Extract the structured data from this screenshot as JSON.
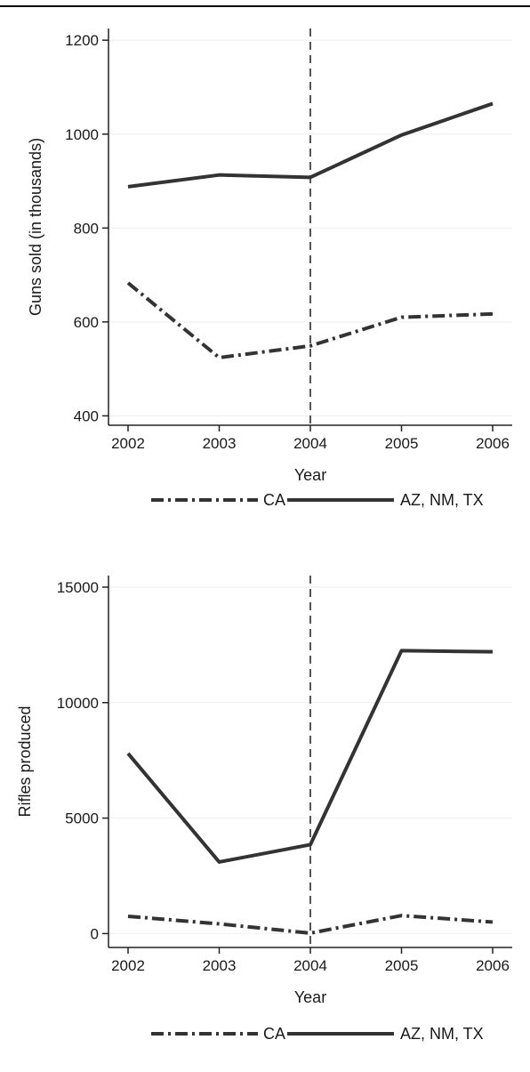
{
  "chart_data": [
    {
      "type": "line",
      "xlabel": "Year",
      "ylabel": "Guns sold (in thousands)",
      "x": [
        2002,
        2003,
        2004,
        2005,
        2006
      ],
      "xticks": [
        "2002",
        "2003",
        "2004",
        "2005",
        "2006"
      ],
      "xlim": [
        2002,
        2006
      ],
      "yticks": [
        400,
        600,
        800,
        1000,
        1200
      ],
      "ytick_labels": [
        "400",
        "600",
        "800",
        "1000",
        "1200"
      ],
      "ylim": [
        380,
        1225
      ],
      "vline": 2004,
      "grid": true,
      "legend_position": "bottom",
      "series": [
        {
          "name": "CA",
          "style": "dash-dot",
          "values": [
            683,
            524,
            549,
            610,
            617
          ]
        },
        {
          "name": "AZ, NM, TX",
          "style": "solid",
          "values": [
            888,
            913,
            908,
            998,
            1065
          ]
        }
      ]
    },
    {
      "type": "line",
      "xlabel": "Year",
      "ylabel": "Rifles produced",
      "x": [
        2002,
        2003,
        2004,
        2005,
        2006
      ],
      "xticks": [
        "2002",
        "2003",
        "2004",
        "2005",
        "2006"
      ],
      "xlim": [
        2002,
        2006
      ],
      "yticks": [
        0,
        5000,
        10000,
        15000
      ],
      "ytick_labels": [
        "0",
        "5000",
        "10000",
        "15000"
      ],
      "ylim": [
        -600,
        15500
      ],
      "vline": 2004,
      "grid": true,
      "legend_position": "bottom",
      "series": [
        {
          "name": "CA",
          "style": "dash-dot",
          "values": [
            750,
            420,
            20,
            780,
            500
          ]
        },
        {
          "name": "AZ, NM, TX",
          "style": "solid",
          "values": [
            7800,
            3100,
            3850,
            12250,
            12200
          ]
        }
      ]
    }
  ],
  "colors": {
    "line": "#333333",
    "vline": "#555555",
    "grid": "#eeeeee",
    "axis": "#222222"
  }
}
